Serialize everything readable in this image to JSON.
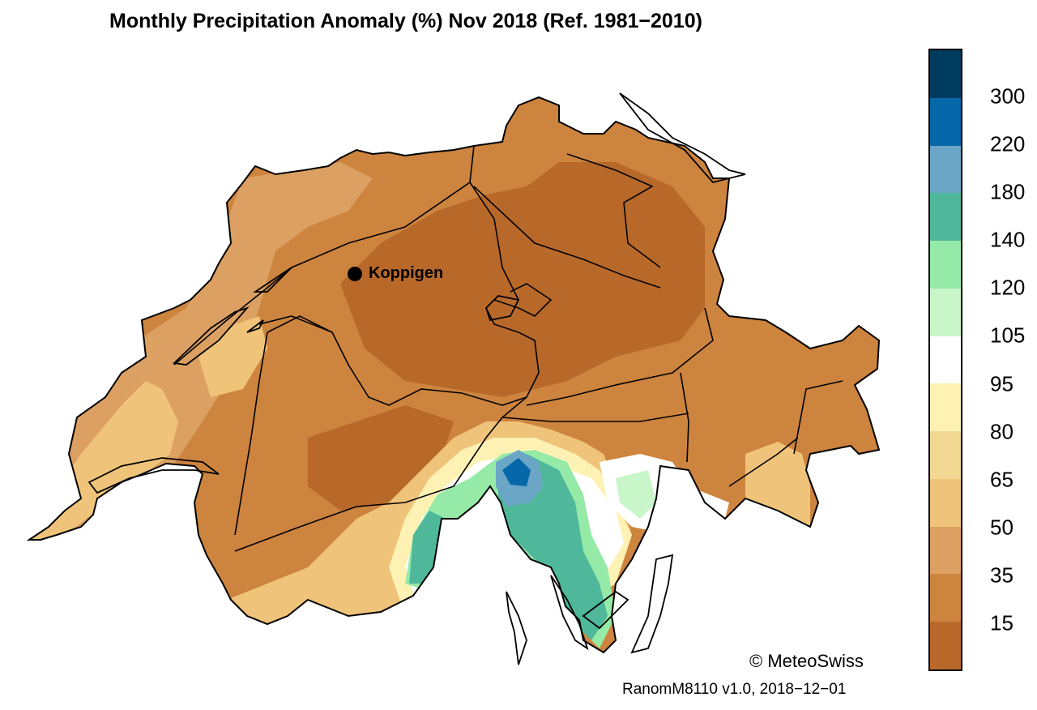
{
  "map": {
    "title": "Monthly Precipitation Anomaly (%) Nov 2018  (Ref. 1981−2010)",
    "city": "Koppigen",
    "copyright": "© MeteoSwiss",
    "version": "RanomM8110 v1.0, 2018−12−01"
  },
  "legend": {
    "labels": [
      "300",
      "220",
      "180",
      "140",
      "120",
      "105",
      "95",
      "80",
      "65",
      "50",
      "35",
      "15"
    ],
    "colors": [
      "#003c5f",
      "#0668a8",
      "#6ba6c6",
      "#4fb89a",
      "#96eaa8",
      "#c8f6c8",
      "#ffffff",
      "#fdf1b4",
      "#f2d892",
      "#efc47a",
      "#dca062",
      "#cd843e",
      "#b8692a"
    ]
  },
  "colors": {
    "brown_dark": "#b8692a",
    "brown_mid": "#cd843e",
    "brown_light": "#dca062",
    "sand": "#efc47a",
    "cream": "#fdf1b4",
    "green_light": "#96eaa8",
    "teal": "#4fb89a",
    "blue": "#0668a8",
    "blue_light": "#6ba6c6"
  }
}
